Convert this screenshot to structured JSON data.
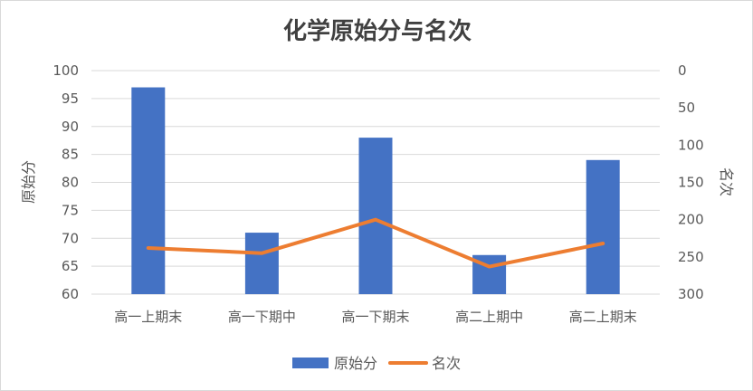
{
  "chart_data": {
    "type": "bar",
    "title": "化学原始分与名次",
    "categories": [
      "高一上期末",
      "高一下期中",
      "高一下期末",
      "高二上期中",
      "高二上期末"
    ],
    "series": [
      {
        "name": "原始分",
        "type": "bar",
        "axis": "left",
        "values": [
          97,
          71,
          88,
          67,
          84
        ]
      },
      {
        "name": "名次",
        "type": "line",
        "axis": "right",
        "values": [
          238,
          245,
          200,
          263,
          232
        ]
      }
    ],
    "ylabel_left": "原始分",
    "ylabel_right": "名次",
    "ylim_left": [
      60,
      100
    ],
    "yticks_left": [
      60,
      65,
      70,
      75,
      80,
      85,
      90,
      95,
      100
    ],
    "ylim_right": [
      0,
      300
    ],
    "yticks_right": [
      0,
      50,
      100,
      150,
      200,
      250,
      300
    ],
    "right_axis_reversed": true,
    "grid": true,
    "legend_position": "bottom",
    "colors": {
      "bar": "#4472C4",
      "line": "#ED7D31",
      "grid": "#D9D9D9"
    }
  }
}
